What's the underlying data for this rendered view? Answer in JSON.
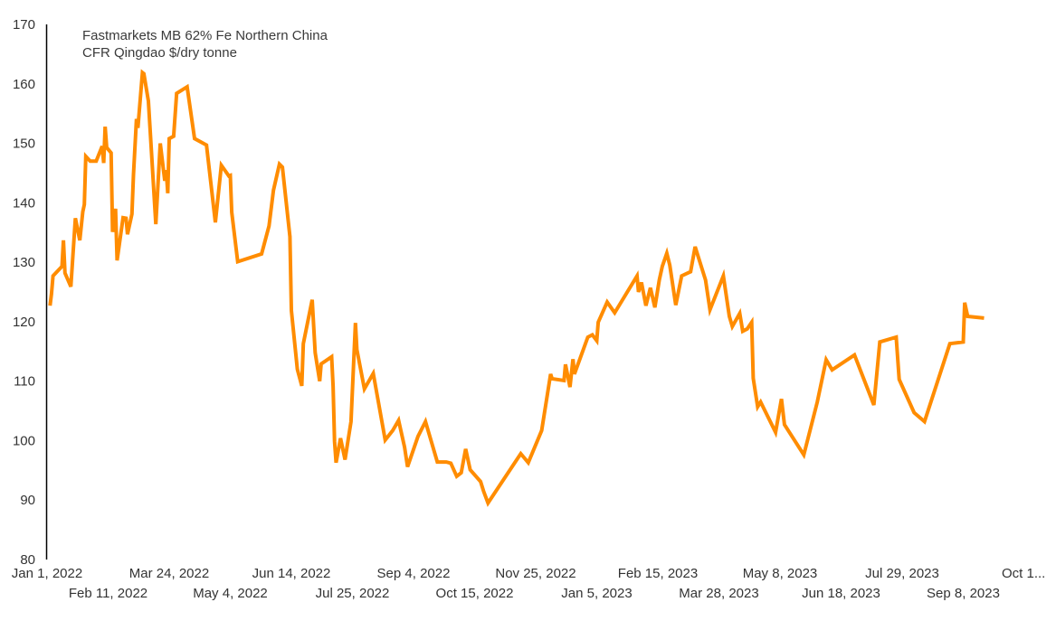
{
  "chart_data": {
    "type": "line",
    "title_lines": [
      "Fastmarkets MB 62% Fe Northern China",
      "CFR Qingdao $/dry tonne"
    ],
    "xlabel": "",
    "ylabel": "",
    "ylim": [
      80,
      170
    ],
    "xlim": [
      "2022-01-01",
      "2023-10-19"
    ],
    "y_ticks": [
      80,
      90,
      100,
      110,
      120,
      130,
      140,
      150,
      160,
      170
    ],
    "x_ticks": [
      {
        "date": "2022-01-01",
        "label": "Jan 1, 2022"
      },
      {
        "date": "2022-02-11",
        "label": "Feb 11, 2022"
      },
      {
        "date": "2022-03-24",
        "label": "Mar 24, 2022"
      },
      {
        "date": "2022-05-04",
        "label": "May 4, 2022"
      },
      {
        "date": "2022-06-14",
        "label": "Jun 14, 2022"
      },
      {
        "date": "2022-07-25",
        "label": "Jul 25, 2022"
      },
      {
        "date": "2022-09-04",
        "label": "Sep 4, 2022"
      },
      {
        "date": "2022-10-15",
        "label": "Oct 15, 2022"
      },
      {
        "date": "2022-11-25",
        "label": "Nov 25, 2022"
      },
      {
        "date": "2023-01-05",
        "label": "Jan 5, 2023"
      },
      {
        "date": "2023-02-15",
        "label": "Feb 15, 2023"
      },
      {
        "date": "2023-03-28",
        "label": "Mar 28, 2023"
      },
      {
        "date": "2023-05-08",
        "label": "May 8, 2023"
      },
      {
        "date": "2023-06-18",
        "label": "Jun 18, 2023"
      },
      {
        "date": "2023-07-29",
        "label": "Jul 29, 2023"
      },
      {
        "date": "2023-09-08",
        "label": "Sep 8, 2023"
      },
      {
        "date": "2023-10-19",
        "label": "Oct 1..."
      }
    ],
    "grid": false,
    "line_color": "#FF8C00",
    "series": [
      {
        "points": [
          [
            "2022-01-03",
            122.7
          ],
          [
            "2022-01-04",
            124.7
          ],
          [
            "2022-01-05",
            127.7
          ],
          [
            "2022-01-11",
            129.3
          ],
          [
            "2022-01-12",
            133.7
          ],
          [
            "2022-01-13",
            128.2
          ],
          [
            "2022-01-17",
            125.9
          ],
          [
            "2022-01-20",
            137.4
          ],
          [
            "2022-01-23",
            133.7
          ],
          [
            "2022-01-25",
            138.5
          ],
          [
            "2022-01-26",
            139.7
          ],
          [
            "2022-01-27",
            147.8
          ],
          [
            "2022-01-30",
            147.0
          ],
          [
            "2022-02-03",
            147.0
          ],
          [
            "2022-02-07",
            149.5
          ],
          [
            "2022-02-08",
            146.7
          ],
          [
            "2022-02-09",
            152.8
          ],
          [
            "2022-02-10",
            149.3
          ],
          [
            "2022-02-13",
            148.4
          ],
          [
            "2022-02-14",
            135.1
          ],
          [
            "2022-02-16",
            139.0
          ],
          [
            "2022-02-17",
            130.3
          ],
          [
            "2022-02-21",
            137.5
          ],
          [
            "2022-02-23",
            137.4
          ],
          [
            "2022-02-24",
            134.7
          ],
          [
            "2022-02-27",
            138.1
          ],
          [
            "2022-02-28",
            144.7
          ],
          [
            "2022-03-02",
            154.1
          ],
          [
            "2022-03-03",
            152.6
          ],
          [
            "2022-03-06",
            161.9
          ],
          [
            "2022-03-07",
            161.7
          ],
          [
            "2022-03-10",
            157.1
          ],
          [
            "2022-03-15",
            136.4
          ],
          [
            "2022-03-18",
            150.0
          ],
          [
            "2022-03-21",
            143.7
          ],
          [
            "2022-03-22",
            145.5
          ],
          [
            "2022-03-23",
            141.6
          ],
          [
            "2022-03-24",
            150.8
          ],
          [
            "2022-03-27",
            151.2
          ],
          [
            "2022-03-29",
            158.4
          ],
          [
            "2022-04-05",
            159.5
          ],
          [
            "2022-04-10",
            150.8
          ],
          [
            "2022-04-18",
            149.7
          ],
          [
            "2022-04-24",
            136.7
          ],
          [
            "2022-04-28",
            146.3
          ],
          [
            "2022-05-03",
            144.5
          ],
          [
            "2022-05-04",
            144.6
          ],
          [
            "2022-05-05",
            138.4
          ],
          [
            "2022-05-09",
            130.1
          ],
          [
            "2022-05-25",
            131.4
          ],
          [
            "2022-05-30",
            136.1
          ],
          [
            "2022-06-02",
            142.1
          ],
          [
            "2022-06-06",
            146.5
          ],
          [
            "2022-06-08",
            146.0
          ],
          [
            "2022-06-13",
            134.3
          ],
          [
            "2022-06-14",
            121.9
          ],
          [
            "2022-06-18",
            112.0
          ],
          [
            "2022-06-21",
            109.2
          ],
          [
            "2022-06-22",
            116.3
          ],
          [
            "2022-06-28",
            123.7
          ],
          [
            "2022-06-30",
            114.8
          ],
          [
            "2022-07-03",
            110.0
          ],
          [
            "2022-07-04",
            112.9
          ],
          [
            "2022-07-11",
            114.1
          ],
          [
            "2022-07-12",
            109.2
          ],
          [
            "2022-07-13",
            99.9
          ],
          [
            "2022-07-14",
            96.3
          ],
          [
            "2022-07-17",
            100.4
          ],
          [
            "2022-07-20",
            96.8
          ],
          [
            "2022-07-24",
            103.2
          ],
          [
            "2022-07-27",
            119.8
          ],
          [
            "2022-07-28",
            115.3
          ],
          [
            "2022-08-02",
            108.7
          ],
          [
            "2022-08-08",
            111.3
          ],
          [
            "2022-08-16",
            100.1
          ],
          [
            "2022-08-21",
            101.7
          ],
          [
            "2022-08-25",
            103.4
          ],
          [
            "2022-08-29",
            98.9
          ],
          [
            "2022-08-31",
            95.6
          ],
          [
            "2022-09-07",
            100.7
          ],
          [
            "2022-09-12",
            103.2
          ],
          [
            "2022-09-20",
            96.4
          ],
          [
            "2022-09-26",
            96.4
          ],
          [
            "2022-09-29",
            96.2
          ],
          [
            "2022-10-03",
            94.0
          ],
          [
            "2022-10-06",
            94.6
          ],
          [
            "2022-10-09",
            98.6
          ],
          [
            "2022-10-12",
            95.1
          ],
          [
            "2022-10-19",
            93.1
          ],
          [
            "2022-10-21",
            91.5
          ],
          [
            "2022-10-24",
            89.5
          ],
          [
            "2022-11-15",
            97.8
          ],
          [
            "2022-11-20",
            96.3
          ],
          [
            "2022-11-29",
            101.7
          ],
          [
            "2022-12-05",
            111.2
          ],
          [
            "2022-12-06",
            110.4
          ],
          [
            "2022-12-14",
            110.1
          ],
          [
            "2022-12-15",
            112.8
          ],
          [
            "2022-12-18",
            109.0
          ],
          [
            "2022-12-20",
            113.7
          ],
          [
            "2022-12-21",
            111.2
          ],
          [
            "2022-12-30",
            117.4
          ],
          [
            "2023-01-02",
            117.8
          ],
          [
            "2023-01-05",
            116.8
          ],
          [
            "2023-01-06",
            119.9
          ],
          [
            "2023-01-12",
            123.3
          ],
          [
            "2023-01-17",
            121.5
          ],
          [
            "2023-02-01",
            127.7
          ],
          [
            "2023-02-02",
            125.0
          ],
          [
            "2023-02-04",
            126.6
          ],
          [
            "2023-02-07",
            122.7
          ],
          [
            "2023-02-10",
            125.7
          ],
          [
            "2023-02-13",
            122.4
          ],
          [
            "2023-02-16",
            127.0
          ],
          [
            "2023-02-18",
            129.3
          ],
          [
            "2023-02-21",
            131.5
          ],
          [
            "2023-02-23",
            129.5
          ],
          [
            "2023-02-27",
            122.8
          ],
          [
            "2023-03-03",
            127.7
          ],
          [
            "2023-03-09",
            128.4
          ],
          [
            "2023-03-12",
            132.6
          ],
          [
            "2023-03-19",
            127.0
          ],
          [
            "2023-03-22",
            122.0
          ],
          [
            "2023-03-31",
            127.7
          ],
          [
            "2023-04-04",
            120.9
          ],
          [
            "2023-04-06",
            119.2
          ],
          [
            "2023-04-11",
            121.4
          ],
          [
            "2023-04-13",
            118.4
          ],
          [
            "2023-04-16",
            118.8
          ],
          [
            "2023-04-19",
            119.9
          ],
          [
            "2023-04-20",
            110.5
          ],
          [
            "2023-04-23",
            105.7
          ],
          [
            "2023-04-25",
            106.5
          ],
          [
            "2023-05-05",
            101.4
          ],
          [
            "2023-05-09",
            107.0
          ],
          [
            "2023-05-11",
            102.7
          ],
          [
            "2023-05-24",
            97.6
          ],
          [
            "2023-06-02",
            106.5
          ],
          [
            "2023-06-08",
            113.6
          ],
          [
            "2023-06-12",
            111.9
          ],
          [
            "2023-06-27",
            114.4
          ],
          [
            "2023-07-10",
            106.0
          ],
          [
            "2023-07-14",
            116.6
          ],
          [
            "2023-07-25",
            117.4
          ],
          [
            "2023-07-27",
            110.3
          ],
          [
            "2023-08-06",
            104.7
          ],
          [
            "2023-08-13",
            103.2
          ],
          [
            "2023-08-30",
            116.3
          ],
          [
            "2023-09-08",
            116.6
          ],
          [
            "2023-09-09",
            123.2
          ],
          [
            "2023-09-11",
            120.9
          ],
          [
            "2023-09-22",
            120.6
          ]
        ]
      }
    ]
  }
}
